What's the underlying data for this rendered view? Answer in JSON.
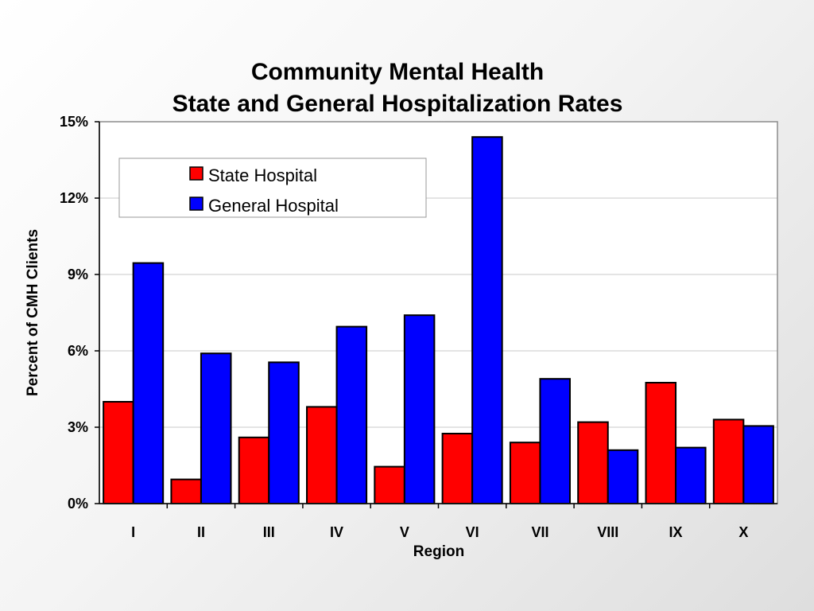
{
  "chart_data": {
    "type": "bar",
    "title": [
      "Community Mental Health",
      "State and General Hospitalization Rates"
    ],
    "xlabel": "Region",
    "ylabel": "Percent of CMH Clients",
    "categories": [
      "I",
      "II",
      "III",
      "IV",
      "V",
      "VI",
      "VII",
      "VIII",
      "IX",
      "X"
    ],
    "series": [
      {
        "name": "State Hospital",
        "color": "#ff0000",
        "values": [
          4.0,
          0.95,
          2.6,
          3.8,
          1.45,
          2.75,
          2.4,
          3.2,
          4.75,
          3.3
        ]
      },
      {
        "name": "General Hospital",
        "color": "#0000ff",
        "values": [
          9.45,
          5.9,
          5.55,
          6.95,
          7.4,
          14.4,
          4.9,
          2.1,
          2.2,
          3.05
        ]
      }
    ],
    "ylim": [
      0,
      15
    ],
    "yticks": [
      0,
      3,
      6,
      9,
      12,
      15
    ],
    "ytick_labels": [
      "0%",
      "3%",
      "6%",
      "9%",
      "12%",
      "15%"
    ],
    "grid": true,
    "legend": "top-left"
  }
}
